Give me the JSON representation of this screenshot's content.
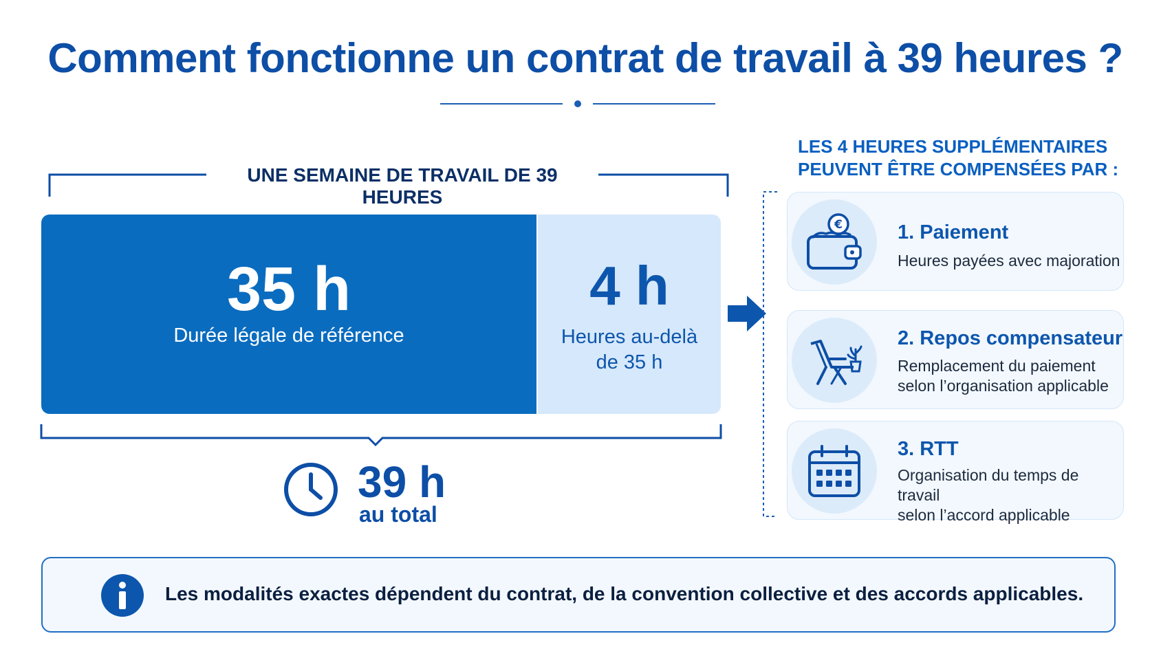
{
  "title": "Comment fonctionne un contrat de travail à 39 heures ?",
  "week": {
    "heading": "UNE SEMAINE DE TRAVAIL DE 39 HEURES",
    "legal": {
      "value": "35 h",
      "label": "Durée légale de référence",
      "hours": 35
    },
    "extra": {
      "value": "4 h",
      "label_line1": "Heures au-delà",
      "label_line2": "de 35 h",
      "hours": 4
    },
    "total": {
      "value": "39 h",
      "label": "au total"
    }
  },
  "compensation": {
    "heading_line1": "LES 4 HEURES SUPPLÉMENTAIRES",
    "heading_line2": "PEUVENT ÊTRE COMPENSÉES PAR :",
    "items": [
      {
        "title": "1. Paiement",
        "desc_line1": "Heures payées avec majoration",
        "desc_line2": "",
        "icon": "wallet-euro-icon"
      },
      {
        "title": "2. Repos compensateur",
        "desc_line1": "Remplacement du paiement",
        "desc_line2": "selon l’organisation applicable",
        "icon": "deckchair-icon"
      },
      {
        "title": "3. RTT",
        "desc_line1": "Organisation du temps de travail",
        "desc_line2": "selon l’accord applicable",
        "icon": "calendar-icon"
      }
    ]
  },
  "info": {
    "text": "Les modalités exactes dépendent du contrat, de la convention collective et des accords applicables."
  },
  "colors": {
    "primary": "#0a6cbf",
    "title": "#0d4ea6",
    "light": "#d6e8fb",
    "card_bg": "#f2f8fe"
  }
}
